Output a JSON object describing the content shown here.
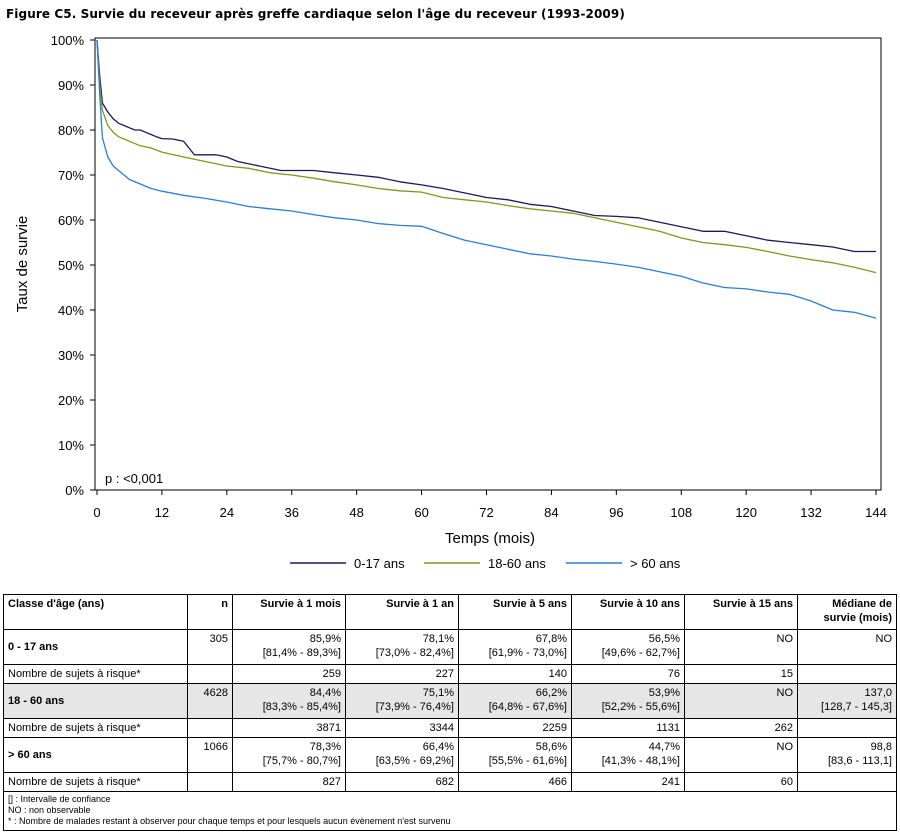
{
  "figure": {
    "title": "Figure C5. Survie du receveur après greffe cardiaque selon l'âge du receveur (1993-2009)",
    "p_value": "p : <0,001"
  },
  "chart_data": {
    "type": "line",
    "title": "Figure C5. Survie du receveur après greffe cardiaque selon l'âge du receveur (1993-2009)",
    "xlabel": "Temps (mois)",
    "ylabel": "Taux de survie",
    "xlim": [
      0,
      144
    ],
    "ylim": [
      0,
      100
    ],
    "xticks": [
      0,
      12,
      24,
      36,
      48,
      60,
      72,
      84,
      96,
      108,
      120,
      132,
      144
    ],
    "yticks": [
      0,
      10,
      20,
      30,
      40,
      50,
      60,
      70,
      80,
      90,
      100
    ],
    "ytick_labels": [
      "0%",
      "10%",
      "20%",
      "30%",
      "40%",
      "50%",
      "60%",
      "70%",
      "80%",
      "90%",
      "100%"
    ],
    "legend_position": "bottom",
    "grid": false,
    "series": [
      {
        "name": "0-17 ans",
        "color": "#1a1a5c",
        "points": [
          [
            0,
            100
          ],
          [
            0.5,
            92
          ],
          [
            1,
            86
          ],
          [
            2,
            84
          ],
          [
            3,
            82.5
          ],
          [
            4,
            81.5
          ],
          [
            5,
            81
          ],
          [
            6,
            80.5
          ],
          [
            7,
            80
          ],
          [
            8,
            80
          ],
          [
            9,
            79.5
          ],
          [
            10,
            79
          ],
          [
            11,
            78.5
          ],
          [
            12,
            78.1
          ],
          [
            14,
            78
          ],
          [
            16,
            77.5
          ],
          [
            17,
            76
          ],
          [
            18,
            74.5
          ],
          [
            20,
            74.5
          ],
          [
            22,
            74.5
          ],
          [
            24,
            74
          ],
          [
            26,
            73
          ],
          [
            28,
            72.5
          ],
          [
            30,
            72
          ],
          [
            32,
            71.5
          ],
          [
            34,
            71
          ],
          [
            36,
            71
          ],
          [
            40,
            71
          ],
          [
            44,
            70.5
          ],
          [
            48,
            70
          ],
          [
            52,
            69.5
          ],
          [
            56,
            68.5
          ],
          [
            60,
            67.8
          ],
          [
            64,
            67
          ],
          [
            68,
            66
          ],
          [
            72,
            65
          ],
          [
            76,
            64.5
          ],
          [
            80,
            63.5
          ],
          [
            84,
            63
          ],
          [
            88,
            62
          ],
          [
            92,
            61
          ],
          [
            96,
            60.8
          ],
          [
            100,
            60.5
          ],
          [
            104,
            59.5
          ],
          [
            108,
            58.5
          ],
          [
            110,
            58
          ],
          [
            112,
            57.5
          ],
          [
            116,
            57.5
          ],
          [
            120,
            56.5
          ],
          [
            124,
            55.5
          ],
          [
            128,
            55
          ],
          [
            132,
            54.5
          ],
          [
            136,
            54
          ],
          [
            140,
            53
          ],
          [
            144,
            53
          ]
        ]
      },
      {
        "name": "18-60 ans",
        "color": "#7a9a1a",
        "points": [
          [
            0,
            100
          ],
          [
            0.5,
            90
          ],
          [
            1,
            84.4
          ],
          [
            2,
            81
          ],
          [
            3,
            79.5
          ],
          [
            4,
            78.5
          ],
          [
            5,
            78
          ],
          [
            6,
            77.5
          ],
          [
            8,
            76.5
          ],
          [
            10,
            76
          ],
          [
            12,
            75.1
          ],
          [
            16,
            74
          ],
          [
            20,
            73
          ],
          [
            24,
            72
          ],
          [
            28,
            71.5
          ],
          [
            32,
            70.5
          ],
          [
            36,
            70
          ],
          [
            40,
            69.3
          ],
          [
            44,
            68.5
          ],
          [
            48,
            67.8
          ],
          [
            52,
            67
          ],
          [
            56,
            66.5
          ],
          [
            60,
            66.2
          ],
          [
            64,
            65
          ],
          [
            68,
            64.5
          ],
          [
            72,
            64
          ],
          [
            76,
            63.2
          ],
          [
            80,
            62.5
          ],
          [
            84,
            62
          ],
          [
            88,
            61.5
          ],
          [
            92,
            60.5
          ],
          [
            96,
            59.5
          ],
          [
            100,
            58.5
          ],
          [
            104,
            57.5
          ],
          [
            108,
            56
          ],
          [
            112,
            55
          ],
          [
            116,
            54.5
          ],
          [
            120,
            53.9
          ],
          [
            124,
            53
          ],
          [
            128,
            52
          ],
          [
            132,
            51.2
          ],
          [
            136,
            50.5
          ],
          [
            140,
            49.5
          ],
          [
            144,
            48.3
          ]
        ]
      },
      {
        "name": "> 60 ans",
        "color": "#2a7fd8",
        "points": [
          [
            0,
            100
          ],
          [
            0.5,
            88
          ],
          [
            1,
            78.3
          ],
          [
            2,
            74
          ],
          [
            3,
            72
          ],
          [
            4,
            71
          ],
          [
            5,
            70
          ],
          [
            6,
            69
          ],
          [
            8,
            68
          ],
          [
            10,
            67
          ],
          [
            12,
            66.4
          ],
          [
            16,
            65.5
          ],
          [
            20,
            64.8
          ],
          [
            24,
            64
          ],
          [
            28,
            63
          ],
          [
            32,
            62.5
          ],
          [
            36,
            62
          ],
          [
            40,
            61.2
          ],
          [
            44,
            60.5
          ],
          [
            48,
            60
          ],
          [
            52,
            59.2
          ],
          [
            56,
            58.8
          ],
          [
            60,
            58.6
          ],
          [
            64,
            57
          ],
          [
            68,
            55.5
          ],
          [
            72,
            54.5
          ],
          [
            76,
            53.5
          ],
          [
            80,
            52.5
          ],
          [
            84,
            52
          ],
          [
            88,
            51.3
          ],
          [
            92,
            50.8
          ],
          [
            96,
            50.2
          ],
          [
            100,
            49.5
          ],
          [
            104,
            48.5
          ],
          [
            108,
            47.5
          ],
          [
            112,
            46
          ],
          [
            116,
            45
          ],
          [
            120,
            44.7
          ],
          [
            124,
            44
          ],
          [
            128,
            43.5
          ],
          [
            132,
            42
          ],
          [
            136,
            40
          ],
          [
            140,
            39.5
          ],
          [
            144,
            38.2
          ]
        ]
      }
    ]
  },
  "table": {
    "headers": [
      "Classe d'âge (ans)",
      "n",
      "Survie à 1 mois",
      "Survie à 1 an",
      "Survie à 5 ans",
      "Survie à 10 ans",
      "Survie à 15 ans",
      "Médiane de survie (mois)"
    ],
    "risk_label": "Nombre de sujets à risque*",
    "groups": [
      {
        "label": "0 - 17 ans",
        "n": "305",
        "s1m": "85,9%",
        "s1m_ci": "[81,4% - 89,3%]",
        "s1a": "78,1%",
        "s1a_ci": "[73,0% - 82,4%]",
        "s5a": "67,8%",
        "s5a_ci": "[61,9% - 73,0%]",
        "s10a": "56,5%",
        "s10a_ci": "[49,6% - 62,7%]",
        "s15a": "NO",
        "s15a_ci": "",
        "median": "NO",
        "median_ci": "",
        "risk": [
          "259",
          "227",
          "140",
          "76",
          "15",
          ""
        ]
      },
      {
        "label": "18 - 60 ans",
        "n": "4628",
        "s1m": "84,4%",
        "s1m_ci": "[83,3% - 85,4%]",
        "s1a": "75,1%",
        "s1a_ci": "[73,9% - 76,4%]",
        "s5a": "66,2%",
        "s5a_ci": "[64,8% - 67,6%]",
        "s10a": "53,9%",
        "s10a_ci": "[52,2% - 55,6%]",
        "s15a": "NO",
        "s15a_ci": "",
        "median": "137,0",
        "median_ci": "[128,7 - 145,3]",
        "risk": [
          "3871",
          "3344",
          "2259",
          "1131",
          "262",
          ""
        ]
      },
      {
        "label": "> 60 ans",
        "n": "1066",
        "s1m": "78,3%",
        "s1m_ci": "[75,7% - 80,7%]",
        "s1a": "66,4%",
        "s1a_ci": "[63,5% - 69,2%]",
        "s5a": "58,6%",
        "s5a_ci": "[55,5% - 61,6%]",
        "s10a": "44,7%",
        "s10a_ci": "[41,3% - 48,1%]",
        "s15a": "NO",
        "s15a_ci": "",
        "median": "98,8",
        "median_ci": "[83,6 - 113,1]",
        "risk": [
          "827",
          "682",
          "466",
          "241",
          "60",
          ""
        ]
      }
    ],
    "notes": [
      "[] : Intervalle de confiance",
      "NO : non observable",
      "* : Nombre de malades restant à observer pour chaque temps et pour lesquels aucun évènement n'est survenu"
    ]
  }
}
